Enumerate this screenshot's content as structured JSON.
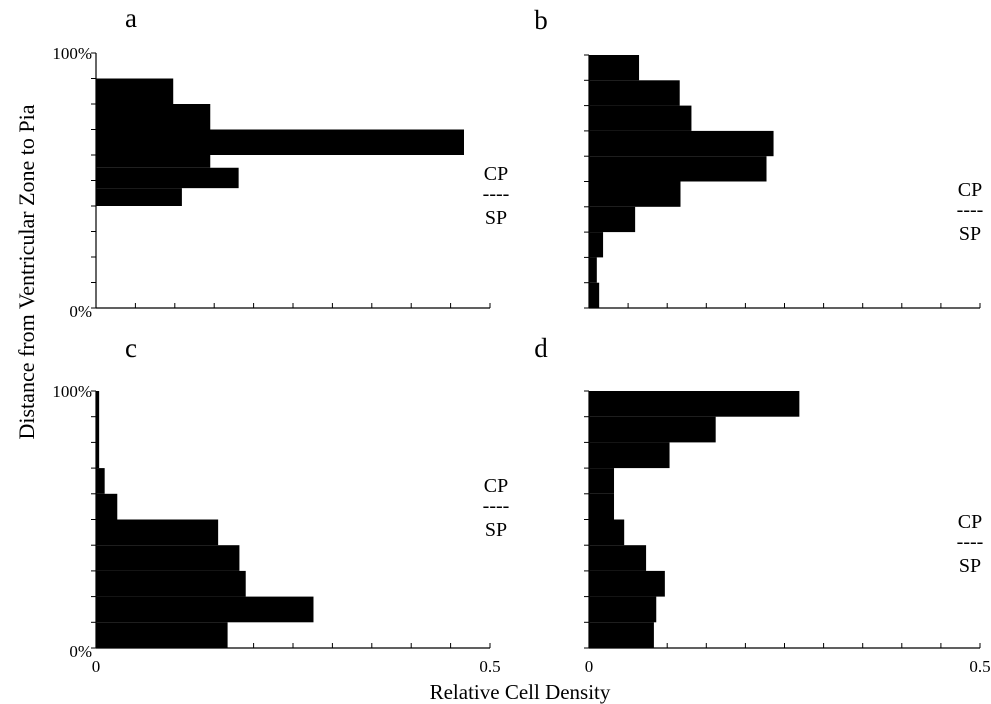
{
  "figure": {
    "ylabel": "Distance from Ventricular Zone to Pia",
    "xlabel": "Relative Cell Density"
  },
  "chart_data": [
    {
      "type": "bar",
      "orientation": "horizontal",
      "panel": "a",
      "ylim": [
        0,
        100
      ],
      "xlim": [
        0,
        0.5
      ],
      "y_tick_labels": [
        "100%",
        "0%"
      ],
      "x_tick_labels": [],
      "region_labels": {
        "upper": "CP",
        "divider": "----",
        "lower": "SP"
      },
      "bins": [
        {
          "y0": 40,
          "y1": 47,
          "value": 0.109
        },
        {
          "y0": 47,
          "y1": 55,
          "value": 0.181
        },
        {
          "y0": 55,
          "y1": 60,
          "value": 0.145
        },
        {
          "y0": 60,
          "y1": 70,
          "value": 0.467
        },
        {
          "y0": 70,
          "y1": 80,
          "value": 0.145
        },
        {
          "y0": 80,
          "y1": 90,
          "value": 0.098
        }
      ]
    },
    {
      "type": "bar",
      "orientation": "horizontal",
      "panel": "b",
      "ylim": [
        0,
        100
      ],
      "xlim": [
        0,
        0.5
      ],
      "y_tick_labels": [],
      "x_tick_labels": [],
      "region_labels": {
        "upper": "CP",
        "divider": "----",
        "lower": "SP"
      },
      "bins": [
        {
          "y0": 0,
          "y1": 10,
          "value": 0.013
        },
        {
          "y0": 10,
          "y1": 20,
          "value": 0.01
        },
        {
          "y0": 20,
          "y1": 30,
          "value": 0.018
        },
        {
          "y0": 30,
          "y1": 40,
          "value": 0.059
        },
        {
          "y0": 40,
          "y1": 50,
          "value": 0.117
        },
        {
          "y0": 50,
          "y1": 60,
          "value": 0.227
        },
        {
          "y0": 60,
          "y1": 70,
          "value": 0.236
        },
        {
          "y0": 70,
          "y1": 80,
          "value": 0.131
        },
        {
          "y0": 80,
          "y1": 90,
          "value": 0.116
        },
        {
          "y0": 90,
          "y1": 100,
          "value": 0.064
        }
      ]
    },
    {
      "type": "bar",
      "orientation": "horizontal",
      "panel": "c",
      "ylim": [
        0,
        100
      ],
      "xlim": [
        0,
        0.5
      ],
      "y_tick_labels": [
        "100%",
        "0%"
      ],
      "x_tick_labels": [
        "0",
        "0.5"
      ],
      "region_labels": {
        "upper": "CP",
        "divider": "----",
        "lower": "SP"
      },
      "bins": [
        {
          "y0": 0,
          "y1": 10,
          "value": 0.167
        },
        {
          "y0": 10,
          "y1": 20,
          "value": 0.276
        },
        {
          "y0": 20,
          "y1": 30,
          "value": 0.19
        },
        {
          "y0": 30,
          "y1": 40,
          "value": 0.182
        },
        {
          "y0": 40,
          "y1": 50,
          "value": 0.155
        },
        {
          "y0": 50,
          "y1": 60,
          "value": 0.027
        },
        {
          "y0": 60,
          "y1": 70,
          "value": 0.011
        },
        {
          "y0": 70,
          "y1": 100,
          "value": 0.004
        }
      ]
    },
    {
      "type": "bar",
      "orientation": "horizontal",
      "panel": "d",
      "ylim": [
        0,
        100
      ],
      "xlim": [
        0,
        0.5
      ],
      "y_tick_labels": [],
      "x_tick_labels": [
        "0",
        "0.5"
      ],
      "region_labels": {
        "upper": "CP",
        "divider": "----",
        "lower": "SP"
      },
      "bins": [
        {
          "y0": 0,
          "y1": 10,
          "value": 0.083
        },
        {
          "y0": 10,
          "y1": 20,
          "value": 0.086
        },
        {
          "y0": 20,
          "y1": 30,
          "value": 0.097
        },
        {
          "y0": 30,
          "y1": 40,
          "value": 0.073
        },
        {
          "y0": 40,
          "y1": 50,
          "value": 0.045
        },
        {
          "y0": 50,
          "y1": 60,
          "value": 0.032
        },
        {
          "y0": 60,
          "y1": 70,
          "value": 0.032
        },
        {
          "y0": 70,
          "y1": 80,
          "value": 0.103
        },
        {
          "y0": 80,
          "y1": 90,
          "value": 0.162
        },
        {
          "y0": 90,
          "y1": 100,
          "value": 0.269
        }
      ]
    }
  ]
}
